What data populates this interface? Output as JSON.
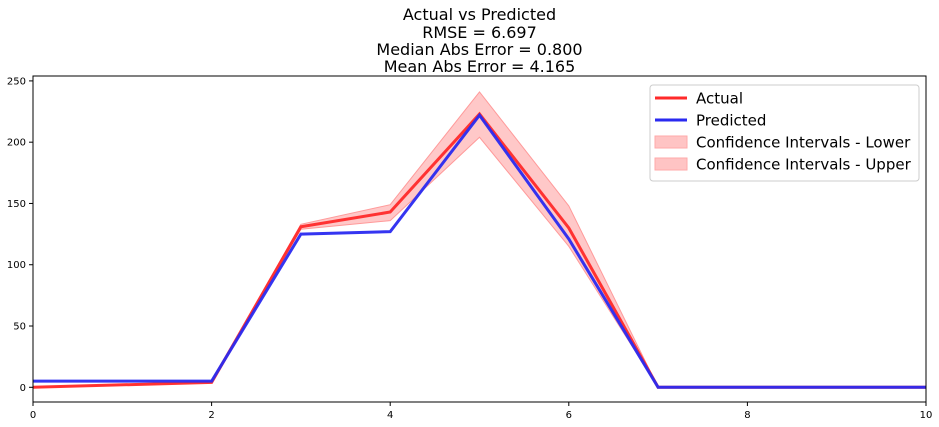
{
  "chart_data": {
    "type": "line",
    "title_lines": [
      "Actual vs Predicted",
      "RMSE = 6.697",
      "Median Abs Error = 0.800",
      "Mean Abs Error = 4.165"
    ],
    "xlabel": "",
    "ylabel": "",
    "xlim": [
      0,
      10
    ],
    "ylim": [
      -12,
      254
    ],
    "xticks": [
      "0",
      "2",
      "4",
      "6",
      "8",
      "10"
    ],
    "yticks": [
      "0",
      "50",
      "100",
      "150",
      "200",
      "250"
    ],
    "x": [
      0,
      2,
      3,
      4,
      5,
      6,
      7,
      10
    ],
    "series": [
      {
        "name": "Actual",
        "color": "#ff2a2a",
        "values": [
          0,
          4,
          131,
          143,
          223,
          130,
          0,
          0
        ]
      },
      {
        "name": "Predicted",
        "color": "#2a2af0",
        "values": [
          5,
          5,
          125,
          127,
          222,
          121,
          0,
          0
        ]
      }
    ],
    "confidence_band": {
      "lower": [
        0,
        4,
        129,
        136,
        204,
        115,
        0,
        0
      ],
      "upper": [
        0,
        4,
        133,
        149,
        241,
        148,
        0,
        0
      ],
      "color": "#ff9a9a"
    },
    "legend": {
      "position": "top-right",
      "entries": [
        {
          "label": "Actual",
          "kind": "line",
          "color": "#ff2a2a"
        },
        {
          "label": "Predicted",
          "kind": "line",
          "color": "#2a2af0"
        },
        {
          "label": "Confidence Intervals - Lower",
          "kind": "patch",
          "color": "#ffc4c4"
        },
        {
          "label": "Confidence Intervals - Upper",
          "kind": "patch",
          "color": "#ffc4c4"
        }
      ]
    },
    "grid": false
  }
}
